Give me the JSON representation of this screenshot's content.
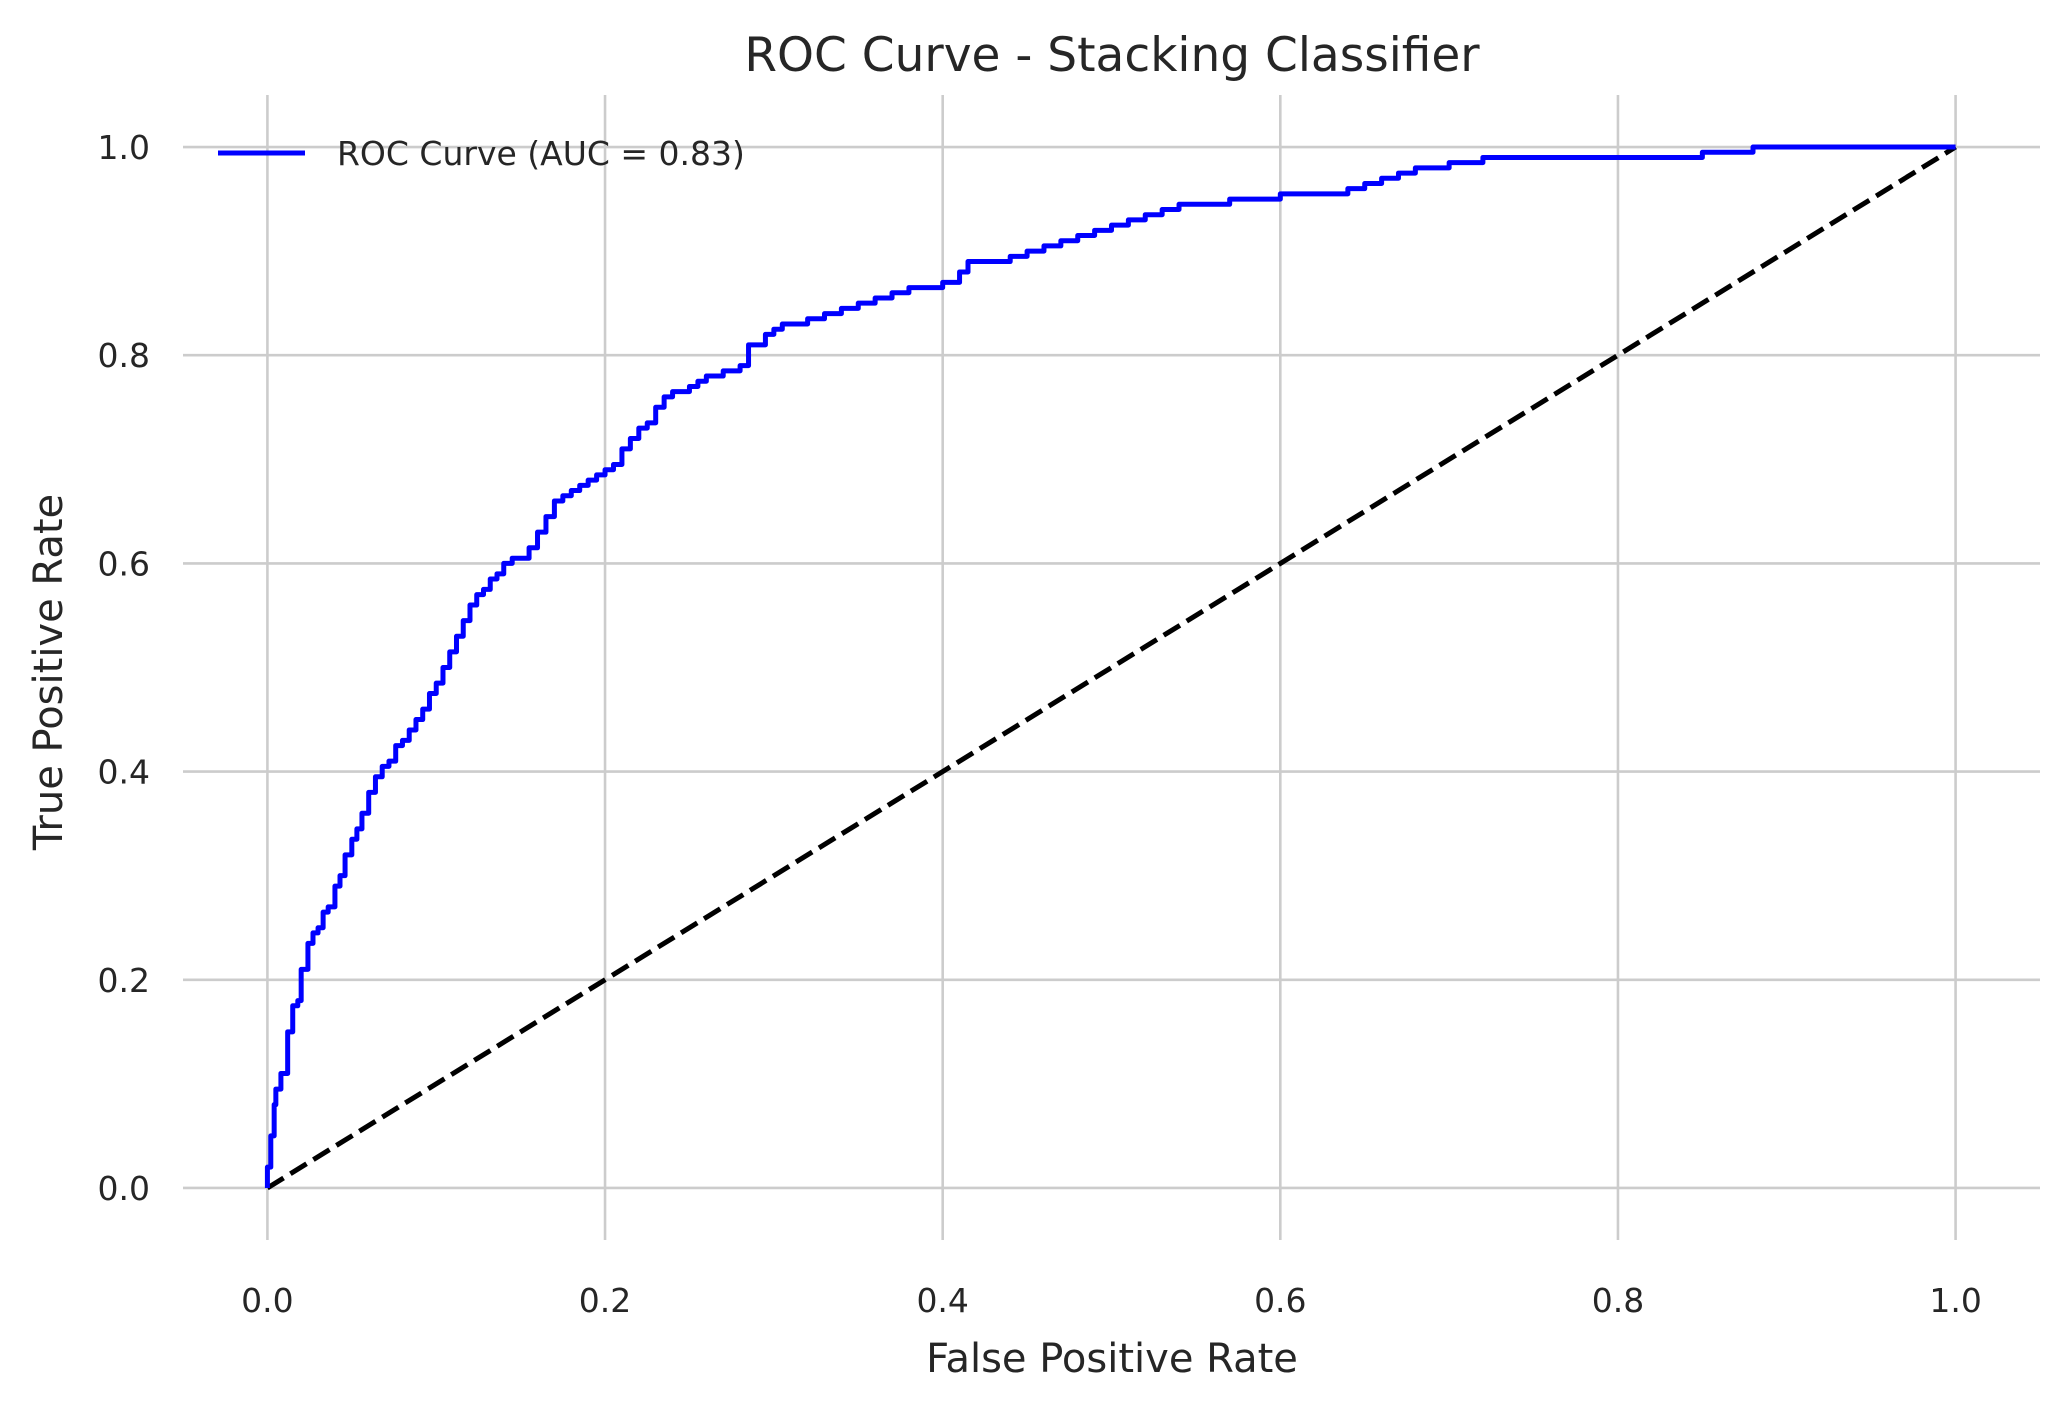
{
  "chart_data": {
    "type": "line",
    "title": "ROC Curve - Stacking Classifier",
    "xlabel": "False Positive Rate",
    "ylabel": "True Positive Rate",
    "xlim": [
      -0.05,
      1.05
    ],
    "ylim": [
      -0.05,
      1.05
    ],
    "x_ticks": [
      0.0,
      0.2,
      0.4,
      0.6,
      0.8,
      1.0
    ],
    "y_ticks": [
      0.0,
      0.2,
      0.4,
      0.6,
      0.8,
      1.0
    ],
    "x_tick_labels": [
      "0.0",
      "0.2",
      "0.4",
      "0.6",
      "0.8",
      "1.0"
    ],
    "y_tick_labels": [
      "0.0",
      "0.2",
      "0.4",
      "0.6",
      "0.8",
      "1.0"
    ],
    "grid": true,
    "legend_position": "top-left",
    "series": [
      {
        "name": "ROC Curve (AUC = 0.83)",
        "color": "#0000ff",
        "style": "solid",
        "x": [
          0.0,
          0.002,
          0.004,
          0.005,
          0.008,
          0.012,
          0.015,
          0.018,
          0.02,
          0.024,
          0.027,
          0.03,
          0.033,
          0.036,
          0.04,
          0.043,
          0.046,
          0.05,
          0.053,
          0.056,
          0.06,
          0.064,
          0.068,
          0.072,
          0.076,
          0.08,
          0.084,
          0.088,
          0.092,
          0.096,
          0.1,
          0.104,
          0.108,
          0.112,
          0.116,
          0.12,
          0.124,
          0.128,
          0.132,
          0.136,
          0.14,
          0.145,
          0.15,
          0.155,
          0.16,
          0.165,
          0.17,
          0.175,
          0.18,
          0.185,
          0.19,
          0.195,
          0.2,
          0.205,
          0.21,
          0.215,
          0.22,
          0.225,
          0.23,
          0.235,
          0.24,
          0.245,
          0.25,
          0.255,
          0.26,
          0.265,
          0.27,
          0.275,
          0.28,
          0.285,
          0.29,
          0.295,
          0.3,
          0.305,
          0.31,
          0.315,
          0.32,
          0.33,
          0.34,
          0.35,
          0.36,
          0.37,
          0.38,
          0.39,
          0.4,
          0.41,
          0.415,
          0.42,
          0.43,
          0.44,
          0.45,
          0.46,
          0.47,
          0.48,
          0.49,
          0.5,
          0.51,
          0.52,
          0.53,
          0.54,
          0.55,
          0.57,
          0.59,
          0.6,
          0.62,
          0.64,
          0.65,
          0.66,
          0.67,
          0.68,
          0.7,
          0.72,
          0.74,
          0.75,
          0.77,
          0.8,
          0.85,
          0.87,
          0.88,
          0.9,
          0.95,
          1.0
        ],
        "y": [
          0.0,
          0.02,
          0.05,
          0.08,
          0.095,
          0.11,
          0.15,
          0.175,
          0.18,
          0.21,
          0.235,
          0.245,
          0.25,
          0.265,
          0.27,
          0.29,
          0.3,
          0.32,
          0.335,
          0.345,
          0.36,
          0.38,
          0.395,
          0.405,
          0.41,
          0.425,
          0.43,
          0.44,
          0.45,
          0.46,
          0.475,
          0.485,
          0.5,
          0.515,
          0.53,
          0.545,
          0.56,
          0.57,
          0.575,
          0.585,
          0.59,
          0.6,
          0.605,
          0.605,
          0.615,
          0.63,
          0.645,
          0.66,
          0.665,
          0.67,
          0.675,
          0.68,
          0.685,
          0.69,
          0.695,
          0.71,
          0.72,
          0.73,
          0.735,
          0.75,
          0.76,
          0.765,
          0.765,
          0.77,
          0.775,
          0.78,
          0.78,
          0.785,
          0.785,
          0.79,
          0.81,
          0.81,
          0.82,
          0.825,
          0.83,
          0.83,
          0.83,
          0.835,
          0.84,
          0.845,
          0.85,
          0.855,
          0.86,
          0.865,
          0.865,
          0.87,
          0.88,
          0.89,
          0.89,
          0.89,
          0.895,
          0.9,
          0.905,
          0.91,
          0.915,
          0.92,
          0.925,
          0.93,
          0.935,
          0.94,
          0.945,
          0.945,
          0.95,
          0.95,
          0.955,
          0.955,
          0.96,
          0.965,
          0.97,
          0.975,
          0.98,
          0.985,
          0.99,
          0.99,
          0.99,
          0.99,
          0.99,
          0.995,
          0.995,
          1.0,
          1.0,
          1.0
        ]
      },
      {
        "color": "#000000",
        "style": "dashed",
        "x": [
          0.0,
          1.0
        ],
        "y": [
          0.0,
          1.0
        ]
      }
    ]
  }
}
